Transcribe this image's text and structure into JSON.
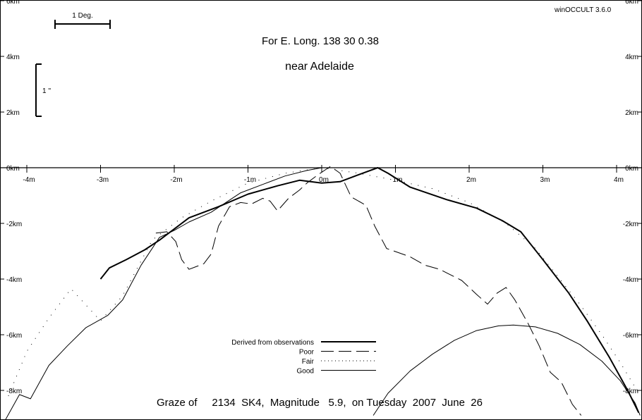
{
  "chart_data": {
    "type": "line",
    "title": "For E. Long.  138 30  0.38",
    "subtitle": "near Adelaide",
    "footer": "Graze of     2134  SK4,  Magnitude   5.9,  on Tuesday  2007  June  26",
    "software": "winOCCULT 3.6.0",
    "x_unit": "minutes",
    "y_unit": "km",
    "xlim": [
      -4.3,
      4.3
    ],
    "ylim": [
      -8.9,
      6
    ],
    "x_ticks": [
      {
        "v": -4,
        "label": "-4m"
      },
      {
        "v": -3,
        "label": "-3m"
      },
      {
        "v": -2,
        "label": "-2m"
      },
      {
        "v": -1,
        "label": "-1m"
      },
      {
        "v": 0,
        "label": "0m"
      },
      {
        "v": 1,
        "label": "1m"
      },
      {
        "v": 2,
        "label": "2m"
      },
      {
        "v": 3,
        "label": "3m"
      },
      {
        "v": 4,
        "label": "4m"
      }
    ],
    "y_labels_left": [
      {
        "v": 6,
        "label": "6km"
      },
      {
        "v": 4,
        "label": "4km"
      },
      {
        "v": 2,
        "label": "2km"
      },
      {
        "v": 0,
        "label": "0km"
      },
      {
        "v": -2,
        "label": "-2km"
      },
      {
        "v": -4,
        "label": "-4km"
      },
      {
        "v": -6,
        "label": "-6km"
      },
      {
        "v": -8,
        "label": "-8km"
      }
    ],
    "y_labels_right": [
      {
        "v": 6,
        "label": "6km"
      },
      {
        "v": 4,
        "label": "4km"
      },
      {
        "v": 2,
        "label": "2km"
      },
      {
        "v": 0,
        "label": "0km"
      },
      {
        "v": -2,
        "label": "-2km"
      },
      {
        "v": -4,
        "label": "-4km"
      },
      {
        "v": -6,
        "label": "-6km"
      },
      {
        "v": -8,
        "label": "-8km"
      }
    ],
    "scale_bars": {
      "degree_label": "1 Deg.",
      "arcsec_label": "1 ''"
    },
    "legend": {
      "placement": "bottom-center",
      "entries": [
        {
          "name": "Derived from observations",
          "style": "thick"
        },
        {
          "name": "Poor",
          "style": "dashed"
        },
        {
          "name": "Fair",
          "style": "dotted"
        },
        {
          "name": "Good",
          "style": "thin"
        }
      ]
    },
    "series": [
      {
        "style": "thick",
        "points": [
          [
            -3.0,
            -4.0
          ],
          [
            -2.88,
            -3.6
          ],
          [
            -2.65,
            -3.3
          ],
          [
            -2.4,
            -2.95
          ],
          [
            -2.2,
            -2.6
          ],
          [
            -1.8,
            -1.8
          ],
          [
            -1.4,
            -1.4
          ],
          [
            -1.0,
            -0.95
          ],
          [
            -0.6,
            -0.65
          ],
          [
            -0.3,
            -0.45
          ],
          [
            0.0,
            -0.55
          ],
          [
            0.25,
            -0.5
          ],
          [
            0.5,
            -0.25
          ],
          [
            0.76,
            0.0
          ],
          [
            0.9,
            -0.2
          ],
          [
            1.2,
            -0.7
          ],
          [
            1.7,
            -1.15
          ],
          [
            2.1,
            -1.45
          ],
          [
            2.45,
            -1.9
          ],
          [
            2.7,
            -2.3
          ],
          [
            3.0,
            -3.3
          ],
          [
            3.35,
            -4.5
          ],
          [
            3.6,
            -5.5
          ],
          [
            3.9,
            -6.8
          ],
          [
            4.15,
            -8.0
          ],
          [
            4.3,
            -8.8
          ]
        ]
      },
      {
        "style": "dashed",
        "points": [
          [
            -2.25,
            -2.35
          ],
          [
            -2.1,
            -2.3
          ],
          [
            -1.98,
            -2.65
          ],
          [
            -1.9,
            -3.3
          ],
          [
            -1.8,
            -3.65
          ],
          [
            -1.6,
            -3.45
          ],
          [
            -1.5,
            -3.1
          ],
          [
            -1.4,
            -2.1
          ],
          [
            -1.25,
            -1.4
          ],
          [
            -1.1,
            -1.25
          ],
          [
            -0.95,
            -1.3
          ],
          [
            -0.8,
            -1.1
          ],
          [
            -0.7,
            -1.2
          ],
          [
            -0.6,
            -1.55
          ],
          [
            -0.45,
            -1.1
          ],
          [
            -0.3,
            -0.8
          ],
          [
            -0.2,
            -0.55
          ],
          [
            -0.05,
            -0.25
          ],
          [
            0.12,
            0.05
          ],
          [
            0.25,
            -0.2
          ],
          [
            0.4,
            -1.05
          ],
          [
            0.6,
            -1.35
          ],
          [
            0.72,
            -2.1
          ],
          [
            0.88,
            -2.9
          ],
          [
            1.2,
            -3.2
          ],
          [
            1.4,
            -3.5
          ],
          [
            1.6,
            -3.65
          ],
          [
            1.9,
            -4.05
          ],
          [
            2.1,
            -4.55
          ],
          [
            2.25,
            -4.9
          ],
          [
            2.38,
            -4.5
          ],
          [
            2.5,
            -4.3
          ],
          [
            2.62,
            -4.75
          ],
          [
            2.8,
            -5.6
          ],
          [
            2.95,
            -6.4
          ],
          [
            3.1,
            -7.35
          ],
          [
            3.25,
            -7.7
          ],
          [
            3.4,
            -8.5
          ],
          [
            3.52,
            -8.9
          ]
        ]
      },
      {
        "style": "dotted",
        "points": [
          [
            -4.25,
            -8.2
          ],
          [
            -4.0,
            -6.6
          ],
          [
            -3.7,
            -5.4
          ],
          [
            -3.4,
            -4.35
          ],
          [
            -3.0,
            -5.5
          ],
          [
            -2.7,
            -4.6
          ],
          [
            -2.5,
            -3.6
          ],
          [
            -2.3,
            -2.6
          ],
          [
            -1.9,
            -1.8
          ],
          [
            -1.5,
            -1.2
          ],
          [
            -1.0,
            -0.55
          ],
          [
            -0.5,
            -0.2
          ],
          [
            0.0,
            0.0
          ],
          [
            0.5,
            -0.2
          ],
          [
            1.0,
            -0.45
          ],
          [
            1.5,
            -0.75
          ],
          [
            2.0,
            -1.25
          ],
          [
            2.5,
            -2.0
          ],
          [
            2.9,
            -2.9
          ],
          [
            3.2,
            -3.9
          ],
          [
            3.5,
            -4.9
          ],
          [
            3.8,
            -6.0
          ],
          [
            4.05,
            -7.0
          ],
          [
            4.3,
            -8.1
          ]
        ]
      },
      {
        "style": "thin",
        "points": [
          [
            -4.3,
            -9.1
          ],
          [
            -4.1,
            -8.15
          ],
          [
            -3.95,
            -8.3
          ],
          [
            -3.7,
            -7.1
          ],
          [
            -3.45,
            -6.4
          ],
          [
            -3.2,
            -5.75
          ],
          [
            -2.9,
            -5.3
          ],
          [
            -2.7,
            -4.75
          ],
          [
            -2.45,
            -3.5
          ],
          [
            -2.2,
            -2.5
          ],
          [
            -2.0,
            -2.25
          ],
          [
            -1.8,
            -1.95
          ],
          [
            -1.5,
            -1.6
          ],
          [
            -1.1,
            -0.9
          ],
          [
            -0.8,
            -0.6
          ],
          [
            -0.5,
            -0.3
          ],
          [
            -0.2,
            -0.1
          ],
          [
            0.0,
            0.0
          ]
        ]
      },
      {
        "style": "thin",
        "points": [
          [
            0.7,
            -8.9
          ],
          [
            0.9,
            -8.1
          ],
          [
            1.2,
            -7.3
          ],
          [
            1.5,
            -6.7
          ],
          [
            1.8,
            -6.2
          ],
          [
            2.1,
            -5.85
          ],
          [
            2.4,
            -5.68
          ],
          [
            2.6,
            -5.65
          ],
          [
            2.9,
            -5.72
          ],
          [
            3.2,
            -5.95
          ],
          [
            3.5,
            -6.35
          ],
          [
            3.8,
            -6.95
          ],
          [
            4.05,
            -7.65
          ],
          [
            4.25,
            -8.45
          ],
          [
            4.32,
            -8.9
          ]
        ]
      }
    ]
  }
}
